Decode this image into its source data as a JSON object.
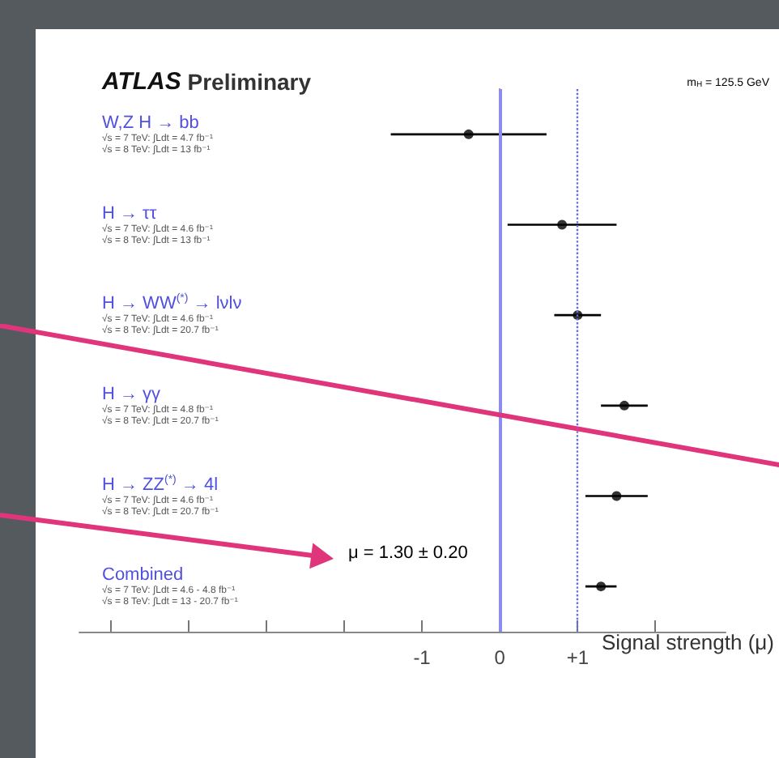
{
  "chart_data": {
    "type": "scatter",
    "orientation": "horizontal",
    "title": "ATLAS Preliminary",
    "xlabel": "Signal strength (μ)",
    "categories": [
      "W,Z H → bb\n√s = 7 TeV: ∫Ldt = 4.7 fb⁻¹\n√s = 8 TeV: ∫Ldt = 13 fb⁻¹",
      "H → ττ\n√s = 7 TeV: ∫Ldt = 4.6 fb⁻¹\n√s = 8 TeV: ∫Ldt = 13 fb⁻¹",
      "H → WW$^{(*)}$ → lνlν\n√s = 7 TeV: ∫Ldt = 4.6 fb⁻¹\n√s = 8 TeV: ∫Ldt = 20.7 fb⁻¹",
      "H → γγ\n√s = 7 TeV: ∫Ldt = 4.8 fb⁻¹\n√s = 8 TeV: ∫Ldt = 20.7 fb⁻¹",
      "H → ZZ$^{(*)}$ → 4l\n√s = 7 TeV: ∫Ldt = 4.6 fb⁻¹\n√s = 8 TeV: ∫Ldt = 20.7 fb⁻¹",
      "Combined\n√s = 7 TeV: ∫Ldt = 4.6 - 4.8 fb⁻¹\n√s = 8 TeV: ∫Ldt = 13 - 20.7 fb⁻¹"
    ],
    "values": [
      -0.4,
      0.8,
      1.0,
      1.6,
      1.5,
      1.3
    ],
    "errors": [
      1.0,
      0.7,
      0.3,
      0.3,
      0.4,
      0.2
    ],
    "color": "#000000",
    "marker": "circle",
    "grid": false,
    "xlim": [
      -5.4,
      2.9
    ],
    "xticks": [
      {
        "value": -5,
        "label": null
      },
      {
        "value": -4,
        "label": null
      },
      {
        "value": -3,
        "label": null
      },
      {
        "value": -2,
        "label": null
      },
      -1,
      0,
      {
        "value": 1,
        "label": "+1"
      },
      {
        "value": 2,
        "label": null
      }
    ],
    "ref_lines": [
      {
        "axis": "x",
        "value": 0,
        "color": "#8c8cf0",
        "line_style": "solid"
      },
      {
        "axis": "x",
        "value": 1,
        "color": "#6a6ad8",
        "line_style": "dotted"
      }
    ],
    "annotations": [
      "m$_{H}$ = 125.5 GeV",
      "μ = 1.30 ± 0.20"
    ]
  }
}
